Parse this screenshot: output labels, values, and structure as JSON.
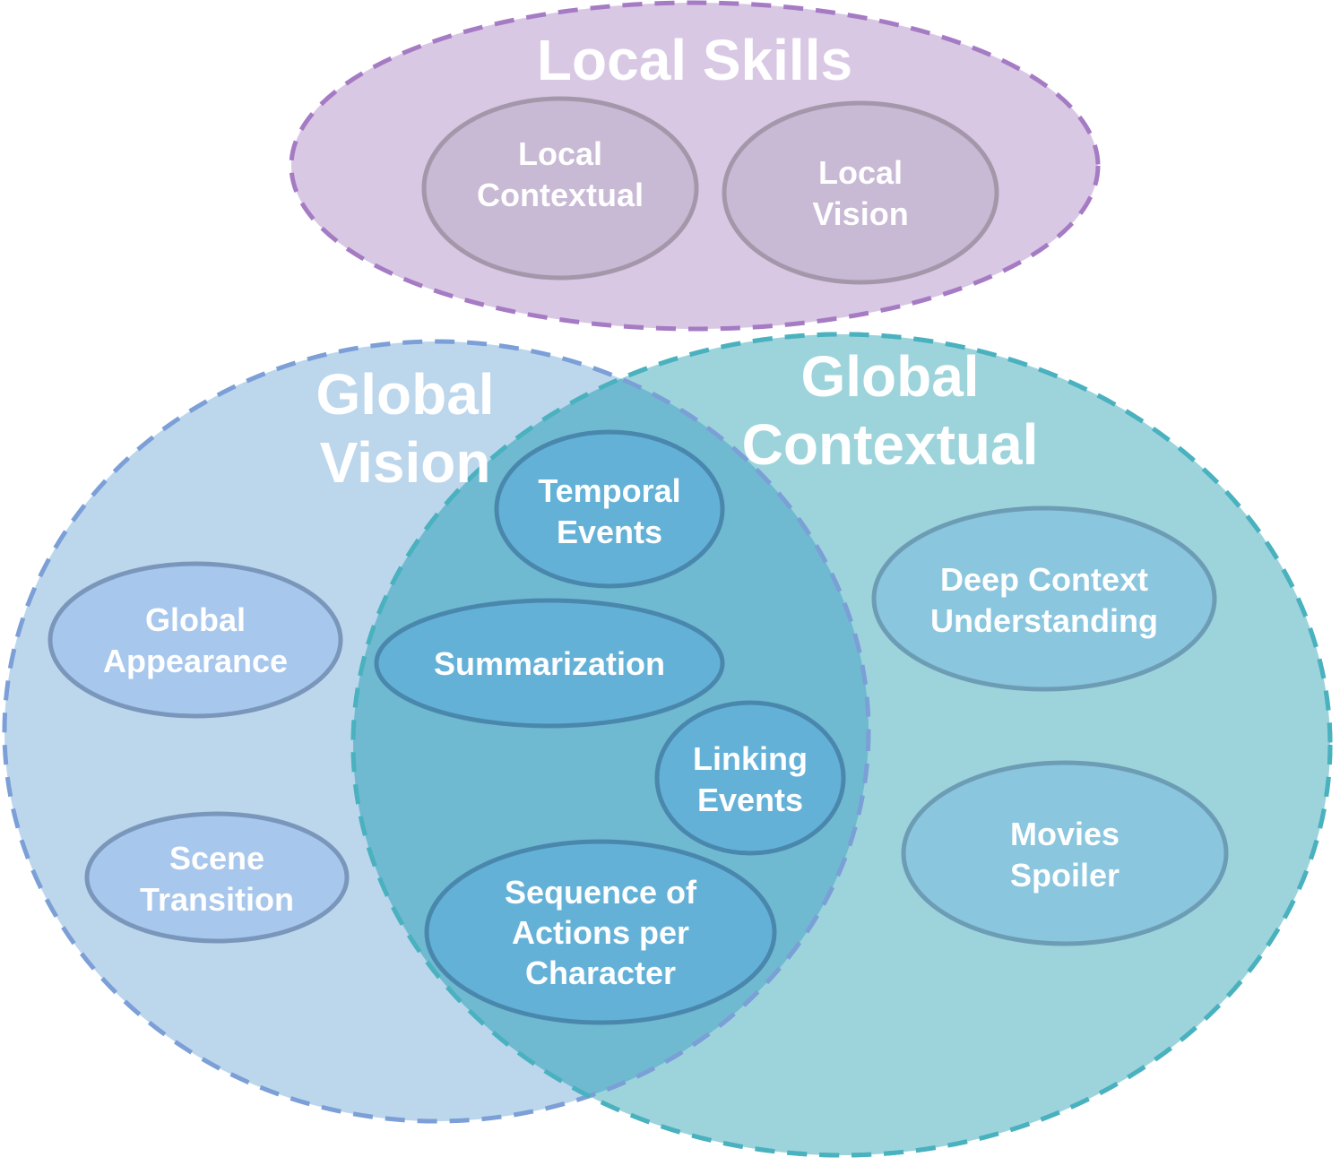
{
  "groups": {
    "local_skills": {
      "title": [
        "Local Skills"
      ],
      "fill": "#d8c8e4",
      "stroke": "#a57bc4"
    },
    "global_vision": {
      "title": [
        "Global",
        "Vision"
      ],
      "fill": "#bcd6ec",
      "stroke": "#7b9fd6"
    },
    "global_contextual": {
      "title": [
        "Global",
        "Contextual"
      ],
      "fill": "#9dd4dc",
      "stroke": "#4ab1bf"
    },
    "overlap_fill": "#6fbad0"
  },
  "skills": {
    "local_contextual": {
      "label": [
        "Local",
        "Contextual"
      ],
      "fill": "#c8b9d4",
      "stroke": "#a597aa"
    },
    "local_vision": {
      "label": [
        "Local",
        "Vision"
      ],
      "fill": "#c8b9d4",
      "stroke": "#a597aa"
    },
    "global_appearance": {
      "label": [
        "Global",
        "Appearance"
      ],
      "fill": "#a8c7ec",
      "stroke": "#7a97bb"
    },
    "scene_transition": {
      "label": [
        "Scene",
        "Transition"
      ],
      "fill": "#a8c7ec",
      "stroke": "#7a97bb"
    },
    "temporal_events": {
      "label": [
        "Temporal",
        "Events"
      ],
      "fill": "#64b1d8",
      "stroke": "#4a87ad"
    },
    "summarization": {
      "label": [
        "Summarization"
      ],
      "fill": "#64b1d8",
      "stroke": "#4a87ad"
    },
    "linking_events": {
      "label": [
        "Linking",
        "Events"
      ],
      "fill": "#64b1d8",
      "stroke": "#4a87ad"
    },
    "sequence_of_actions": {
      "label": [
        "Sequence of",
        "Actions per",
        "Character"
      ],
      "fill": "#64b1d8",
      "stroke": "#4a87ad"
    },
    "deep_context": {
      "label": [
        "Deep Context",
        "Understanding"
      ],
      "fill": "#8ac6de",
      "stroke": "#6d9db5"
    },
    "movies_spoiler": {
      "label": [
        "Movies",
        "Spoiler"
      ],
      "fill": "#8ac6de",
      "stroke": "#6d9db5"
    }
  }
}
